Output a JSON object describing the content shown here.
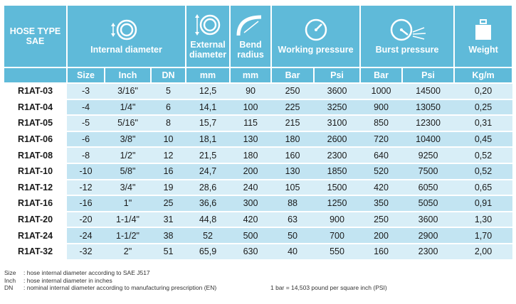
{
  "header": {
    "hose_type": "HOSE TYPE",
    "hose_type_sub": "SAE",
    "internal_diameter": "Internal diameter",
    "external_diameter": "External diameter",
    "bend_radius": "Bend radius",
    "working_pressure": "Working pressure",
    "burst_pressure": "Burst pressure",
    "weight": "Weight"
  },
  "subheader": {
    "size": "Size",
    "inch": "Inch",
    "dn": "DN",
    "ext_mm": "mm",
    "bend_mm": "mm",
    "wp_bar": "Bar",
    "wp_psi": "Psi",
    "bp_bar": "Bar",
    "bp_psi": "Psi",
    "kgm": "Kg/m"
  },
  "icons": {
    "internal": "internal-diameter-icon",
    "external": "external-diameter-icon",
    "bend": "bend-radius-icon",
    "working": "pressure-gauge-icon",
    "burst": "burst-gauge-icon",
    "weight": "weight-icon"
  },
  "rows": [
    {
      "code": "R1AT-03",
      "size": "-3",
      "inch": "3/16\"",
      "dn": "5",
      "ext": "12,5",
      "bend": "90",
      "wp_bar": "250",
      "wp_psi": "3600",
      "bp_bar": "1000",
      "bp_psi": "14500",
      "kg": "0,20"
    },
    {
      "code": "R1AT-04",
      "size": "-4",
      "inch": "1/4\"",
      "dn": "6",
      "ext": "14,1",
      "bend": "100",
      "wp_bar": "225",
      "wp_psi": "3250",
      "bp_bar": "900",
      "bp_psi": "13050",
      "kg": "0,25"
    },
    {
      "code": "R1AT-05",
      "size": "-5",
      "inch": "5/16\"",
      "dn": "8",
      "ext": "15,7",
      "bend": "115",
      "wp_bar": "215",
      "wp_psi": "3100",
      "bp_bar": "850",
      "bp_psi": "12300",
      "kg": "0,31"
    },
    {
      "code": "R1AT-06",
      "size": "-6",
      "inch": "3/8\"",
      "dn": "10",
      "ext": "18,1",
      "bend": "130",
      "wp_bar": "180",
      "wp_psi": "2600",
      "bp_bar": "720",
      "bp_psi": "10400",
      "kg": "0,45"
    },
    {
      "code": "R1AT-08",
      "size": "-8",
      "inch": "1/2\"",
      "dn": "12",
      "ext": "21,5",
      "bend": "180",
      "wp_bar": "160",
      "wp_psi": "2300",
      "bp_bar": "640",
      "bp_psi": "9250",
      "kg": "0,52"
    },
    {
      "code": "R1AT-10",
      "size": "-10",
      "inch": "5/8\"",
      "dn": "16",
      "ext": "24,7",
      "bend": "200",
      "wp_bar": "130",
      "wp_psi": "1850",
      "bp_bar": "520",
      "bp_psi": "7500",
      "kg": "0,52"
    },
    {
      "code": "R1AT-12",
      "size": "-12",
      "inch": "3/4\"",
      "dn": "19",
      "ext": "28,6",
      "bend": "240",
      "wp_bar": "105",
      "wp_psi": "1500",
      "bp_bar": "420",
      "bp_psi": "6050",
      "kg": "0,65"
    },
    {
      "code": "R1AT-16",
      "size": "-16",
      "inch": "1\"",
      "dn": "25",
      "ext": "36,6",
      "bend": "300",
      "wp_bar": "88",
      "wp_psi": "1250",
      "bp_bar": "350",
      "bp_psi": "5050",
      "kg": "0,91"
    },
    {
      "code": "R1AT-20",
      "size": "-20",
      "inch": "1-1/4\"",
      "dn": "31",
      "ext": "44,8",
      "bend": "420",
      "wp_bar": "63",
      "wp_psi": "900",
      "bp_bar": "250",
      "bp_psi": "3600",
      "kg": "1,30"
    },
    {
      "code": "R1AT-24",
      "size": "-24",
      "inch": "1-1/2\"",
      "dn": "38",
      "ext": "52",
      "bend": "500",
      "wp_bar": "50",
      "wp_psi": "700",
      "bp_bar": "200",
      "bp_psi": "2900",
      "kg": "1,70"
    },
    {
      "code": "R1AT-32",
      "size": "-32",
      "inch": "2\"",
      "dn": "51",
      "ext": "65,9",
      "bend": "630",
      "wp_bar": "40",
      "wp_psi": "550",
      "bp_bar": "160",
      "bp_psi": "2300",
      "kg": "2,00"
    }
  ],
  "notes": {
    "size_key": "Size",
    "size_text": ":  hose internal diameter according to SAE J517",
    "inch_key": "Inch",
    "inch_text": ":  hose internal diameter in inches",
    "dn_key": "DN",
    "dn_text": ":  nominal internal diameter according to manufacturing prescription (EN)",
    "psi_conversion": "1 bar = 14,503 pound per square inch (PSI)"
  },
  "colors": {
    "header_bg": "#5fbad9",
    "row_light": "#d8eef7",
    "row_dark": "#c2e4f2"
  }
}
